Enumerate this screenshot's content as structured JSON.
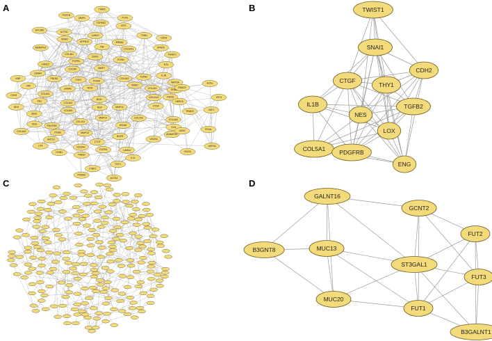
{
  "panels": [
    {
      "id": "A",
      "letter": "A",
      "labels": [
        "PSMA3",
        "DPPB12",
        "COL4A3",
        "FBLN2",
        "COL1A1",
        "COL4A4",
        "COL5A1",
        "FBN1",
        "ADAMTS2",
        "LTBP1",
        "COL4A1",
        "COL3A1",
        "CTSK",
        "POSTN",
        "COL4A2",
        "COL2A1",
        "COL1A2",
        "ELN",
        "MMP13",
        "BGN",
        "COL11A1",
        "LAMA2",
        "ADAMTS5",
        "TIMP2",
        "LOX",
        "THBS2",
        "LAMC1",
        "LAMA4",
        "ITGB8",
        "COL6A1",
        "VWF",
        "MMP1",
        "IL1B",
        "ITGB1",
        "COL10A1",
        "MMP14",
        "CTGF",
        "VIM",
        "PLAU",
        "FGF2",
        "ACTA2",
        "TGFB1",
        "S100A4",
        "LAMC2",
        "LAMA1",
        "ITGB3",
        "ACTN1",
        "PDGFRB",
        "ZEB1",
        "ITGB4",
        "MMP7",
        "ENG",
        "THY1",
        "MCAM",
        "CDH1",
        "IGF1",
        "SNAI1",
        "CXCR4",
        "SOX9",
        "KRT19",
        "IL11",
        "NES",
        "TWIST1",
        "SNAI2",
        "FN1",
        "FGFR1",
        "EPCAM",
        "ERBB2",
        "NGF",
        "WNT5A",
        "MMP11",
        "ERBB4",
        "NOG",
        "FGFR3",
        "NT4",
        "NGFR",
        "TGFBR2",
        "VEGFA",
        "TNF",
        "SPARC",
        "CDH2",
        "TGFB2",
        "RSAD2",
        "RTP4",
        "TRIM22",
        "XAF1",
        "OAS2",
        "IFI44L",
        "ISG15",
        "USP18",
        "HERC6",
        "IFIT3"
      ]
    },
    {
      "id": "B",
      "letter": "B",
      "labels": [
        "TWIST1",
        "SNAI1",
        "CDH2",
        "CTGF",
        "THY1",
        "IL1B",
        "TGFB2",
        "NES",
        "LOX",
        "COL5A1",
        "PDGFRB",
        "ENG"
      ]
    },
    {
      "id": "C",
      "letter": "C"
    },
    {
      "id": "D",
      "letter": "D",
      "labels": [
        "GALNT16",
        "GCNT2",
        "FUT2",
        "B3GNT8",
        "MUC13",
        "ST3GAL1",
        "FUT3",
        "MUC20",
        "FUT1",
        "B3GALNT1"
      ]
    }
  ],
  "colors": {
    "node_fill": "#f3da7a",
    "node_stroke": "#6b5a1e",
    "edge": "#9a9a9a"
  }
}
